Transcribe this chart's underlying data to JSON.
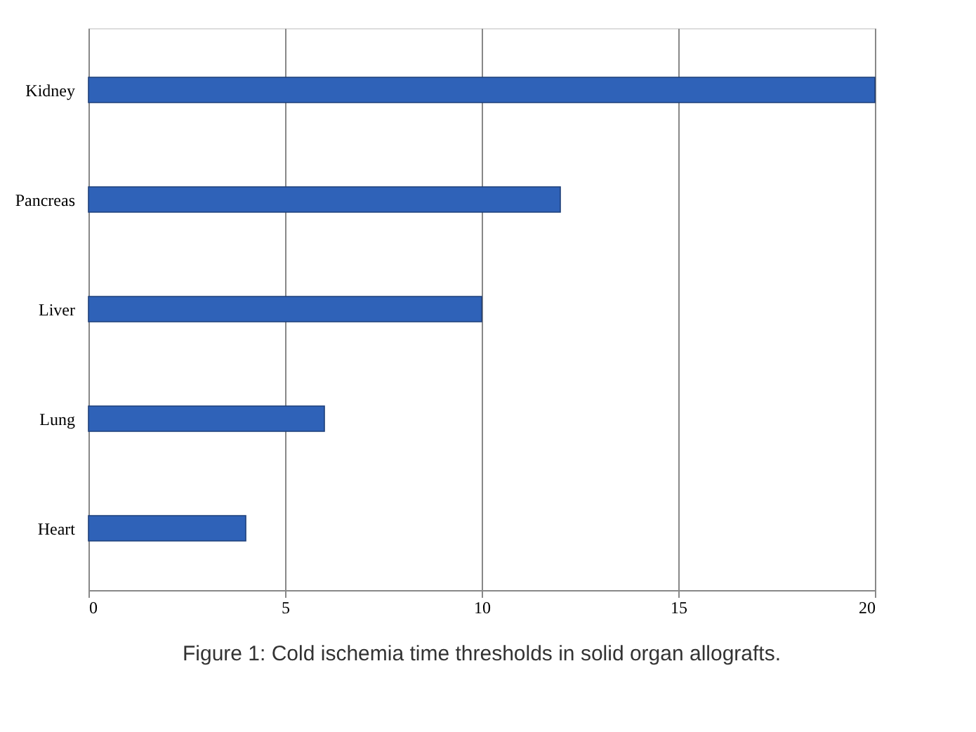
{
  "chart_data": {
    "type": "bar",
    "orientation": "horizontal",
    "categories": [
      "Kidney",
      "Pancreas",
      "Liver",
      "Lung",
      "Heart"
    ],
    "values": [
      20,
      12,
      10,
      6,
      4
    ],
    "color": "#2f62b8",
    "xlim": [
      0,
      20
    ],
    "xticks": [
      0,
      5,
      10,
      15,
      20
    ],
    "grid": "x",
    "annotations": [
      "Figure 1: Cold ischemia time thresholds in solid organ allografts."
    ]
  }
}
